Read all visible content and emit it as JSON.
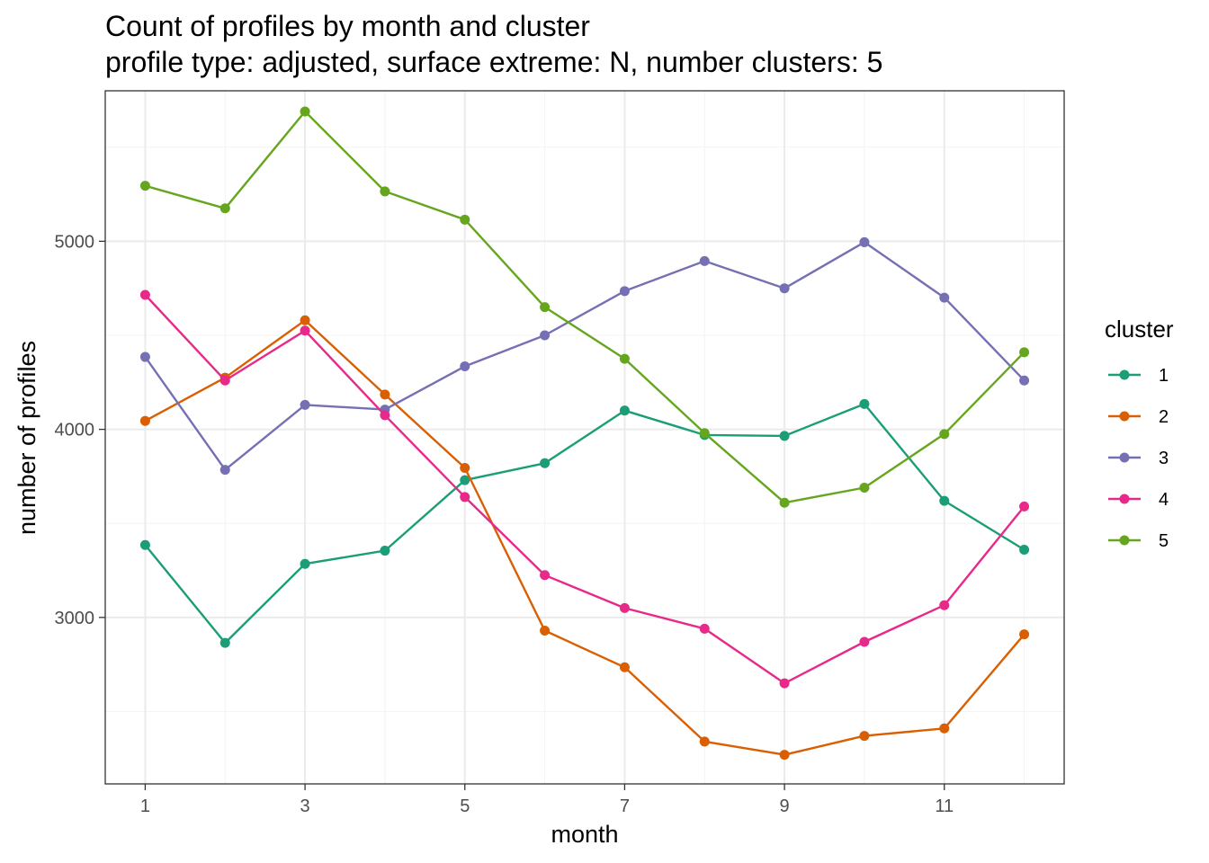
{
  "chart_data": {
    "type": "line",
    "title": "Count of profiles by month and cluster",
    "subtitle": "profile type: adjusted, surface extreme: N, number clusters: 5",
    "xlabel": "month",
    "ylabel": "number of profiles",
    "x": [
      1,
      2,
      3,
      4,
      5,
      6,
      7,
      8,
      9,
      10,
      11,
      12
    ],
    "xlim": [
      0.5,
      12.5
    ],
    "ylim": [
      2115,
      5800
    ],
    "x_ticks": [
      1,
      3,
      5,
      7,
      9,
      11
    ],
    "y_ticks": [
      3000,
      4000,
      5000
    ],
    "grid": true,
    "legend": {
      "title": "cluster",
      "position": "right"
    },
    "series": [
      {
        "name": "1",
        "color": "#1b9e77",
        "values": [
          3385,
          2865,
          3285,
          3355,
          3730,
          3820,
          4100,
          3970,
          3965,
          4135,
          3620,
          3360
        ]
      },
      {
        "name": "2",
        "color": "#d95f02",
        "values": [
          4045,
          4275,
          4580,
          4185,
          3795,
          2930,
          2735,
          2340,
          2270,
          2370,
          2410,
          2910
        ]
      },
      {
        "name": "3",
        "color": "#7570b3",
        "values": [
          4385,
          3785,
          4130,
          4105,
          4335,
          4500,
          4735,
          4895,
          4750,
          4995,
          4700,
          4260
        ]
      },
      {
        "name": "4",
        "color": "#e7298a",
        "values": [
          4715,
          4260,
          4525,
          4075,
          3640,
          3225,
          3050,
          2940,
          2650,
          2870,
          3065,
          3590
        ]
      },
      {
        "name": "5",
        "color": "#66a61e",
        "values": [
          5295,
          5175,
          5690,
          5265,
          5115,
          4650,
          4375,
          3980,
          3610,
          3690,
          3975,
          4410
        ]
      }
    ]
  }
}
